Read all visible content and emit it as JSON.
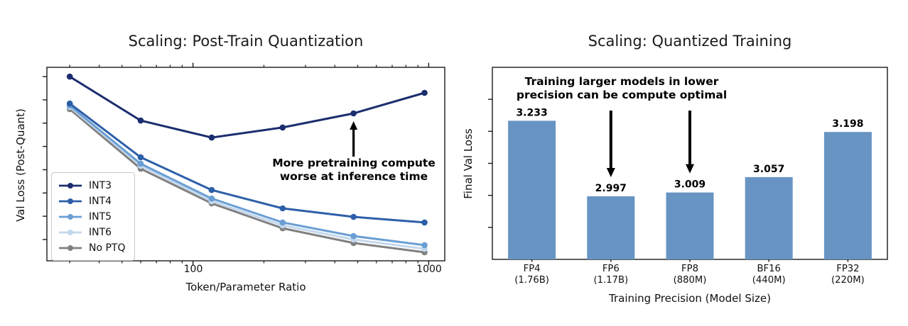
{
  "figure": {
    "background": "#ffffff"
  },
  "chart_data": [
    {
      "id": "post_train_quantization",
      "type": "line",
      "title": "Scaling: Post-Train Quantization",
      "xlabel": "Token/Parameter Ratio",
      "ylabel": "Val Loss (Post-Quant)",
      "x_scale": "log",
      "xlim": [
        24,
        1170
      ],
      "x_tick_labels": [
        "100",
        "1000"
      ],
      "x_tick_values": [
        100,
        1000
      ],
      "x_minor_ticks": [
        30,
        40,
        50,
        60,
        70,
        80,
        90,
        200,
        300,
        400,
        500,
        600,
        700,
        800,
        900
      ],
      "y_axis_note": "y ticks are unlabeled in the figure; series values below are relative estimates (0 = bottom of axes, 1 = top)",
      "ylim": [
        0,
        1
      ],
      "x": [
        30,
        60,
        120,
        240,
        480,
        960
      ],
      "series": [
        {
          "name": "INT3",
          "color": "#1b2d6e",
          "values": [
            0.952,
            0.725,
            0.637,
            0.689,
            0.762,
            0.868
          ]
        },
        {
          "name": "INT4",
          "color": "#2d5fa8",
          "values": [
            0.813,
            0.535,
            0.366,
            0.271,
            0.227,
            0.198
          ]
        },
        {
          "name": "INT5",
          "color": "#6a9fd4",
          "values": [
            0.802,
            0.502,
            0.322,
            0.198,
            0.128,
            0.081
          ]
        },
        {
          "name": "INT6",
          "color": "#c3d8ed",
          "values": [
            0.795,
            0.491,
            0.308,
            0.183,
            0.11,
            0.062
          ]
        },
        {
          "name": "No PTQ",
          "color": "#808080",
          "values": [
            0.784,
            0.476,
            0.297,
            0.168,
            0.092,
            0.044
          ]
        }
      ],
      "legend": {
        "position": "lower left",
        "entries": [
          "INT3",
          "INT4",
          "INT5",
          "INT6",
          "No PTQ"
        ]
      },
      "annotation": {
        "line1": "More pretraining compute",
        "line2": "worse at inference time",
        "arrow": {
          "points_to_series": "INT3",
          "points_to_x": 480,
          "direction": "up"
        }
      }
    },
    {
      "id": "quantized_training",
      "type": "bar",
      "title": "Scaling: Quantized Training",
      "xlabel": "Training Precision (Model Size)",
      "ylabel": "Final Val Loss",
      "ylim": [
        2.8,
        3.4
      ],
      "y_axis_note": "y ticks are unlabeled in the figure",
      "bar_color": "#6894c4",
      "bars": [
        {
          "label": "FP4",
          "sublabel": "(1.76B)",
          "value": 3.233,
          "arrow": false
        },
        {
          "label": "FP6",
          "sublabel": "(1.17B)",
          "value": 2.997,
          "arrow": true
        },
        {
          "label": "FP8",
          "sublabel": "(880M)",
          "value": 3.009,
          "arrow": true
        },
        {
          "label": "BF16",
          "sublabel": "(440M)",
          "value": 3.057,
          "arrow": false
        },
        {
          "label": "FP32",
          "sublabel": "(220M)",
          "value": 3.198,
          "arrow": false
        }
      ],
      "annotation": {
        "line1": "Training larger models in lower",
        "line2": "precision can be compute optimal",
        "arrows_point_to": [
          "FP6",
          "FP8"
        ]
      }
    }
  ]
}
